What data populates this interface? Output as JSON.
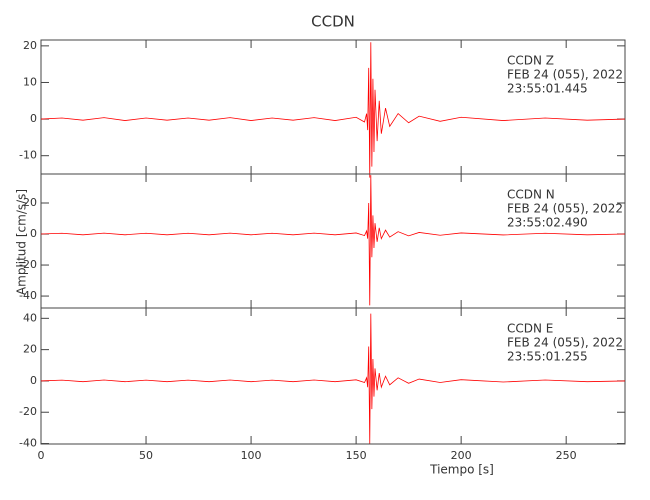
{
  "chart_data": {
    "type": "line",
    "title": "CCDN",
    "xlabel": "Tiempo [s]",
    "ylabel": "Amplitud [cm/s/s]",
    "xlim": [
      0,
      278
    ],
    "xticks": [
      0,
      50,
      100,
      150,
      200,
      250
    ],
    "panels": [
      {
        "annotation": [
          "CCDN   Z",
          "FEB 24 (055), 2022",
          "23:55:01.445"
        ],
        "color": "#ff0000",
        "ylim": [
          -15,
          21.6
        ],
        "yticks": [
          -10,
          0,
          10,
          20
        ],
        "x": [
          0,
          10,
          20,
          30,
          40,
          50,
          60,
          70,
          80,
          90,
          100,
          110,
          120,
          130,
          140,
          150,
          154,
          155,
          155.5,
          156,
          156.5,
          157,
          157.5,
          158,
          158.5,
          159,
          160,
          161,
          162,
          164,
          166,
          170,
          175,
          180,
          190,
          200,
          220,
          240,
          260,
          278
        ],
        "values": [
          0,
          0.3,
          -0.3,
          0.4,
          -0.4,
          0.3,
          -0.3,
          0.3,
          -0.3,
          0.4,
          -0.4,
          0.3,
          -0.3,
          0.4,
          -0.4,
          0.5,
          -0.8,
          1.5,
          -3,
          14,
          -16,
          21,
          -13,
          11,
          -9,
          8,
          -6,
          5,
          -4,
          3,
          -2,
          1.5,
          -1,
          0.8,
          -0.6,
          0.5,
          -0.4,
          0.3,
          -0.3,
          0
        ]
      },
      {
        "annotation": [
          "CCDN   N",
          "FEB 24 (055), 2022",
          "23:55:02.490"
        ],
        "color": "#ff0000",
        "ylim": [
          -47.7,
          38.7
        ],
        "yticks": [
          -40,
          -20,
          0,
          20
        ],
        "x": [
          0,
          10,
          20,
          30,
          40,
          50,
          60,
          70,
          80,
          90,
          100,
          110,
          120,
          130,
          140,
          150,
          154,
          155,
          155.5,
          156,
          156.5,
          157,
          157.5,
          158,
          158.5,
          159,
          160,
          161,
          162,
          164,
          166,
          170,
          175,
          180,
          190,
          200,
          220,
          240,
          260,
          278
        ],
        "values": [
          0,
          0.5,
          -0.5,
          0.6,
          -0.5,
          0.5,
          -0.5,
          0.5,
          -0.5,
          0.6,
          -0.5,
          0.5,
          -0.5,
          0.6,
          -0.5,
          0.7,
          -1,
          2,
          -3,
          20,
          -46,
          38,
          -15,
          12,
          -9,
          7,
          -5,
          4,
          -3,
          2.5,
          -2,
          1.5,
          -1.2,
          1,
          -0.8,
          0.7,
          -0.6,
          0.5,
          -0.5,
          0
        ]
      },
      {
        "annotation": [
          "CCDN   E",
          "FEB 24 (055), 2022",
          "23:55:01.255"
        ],
        "color": "#ff0000",
        "ylim": [
          -40.3,
          46.6
        ],
        "yticks": [
          -40,
          -20,
          0,
          20,
          40
        ],
        "x": [
          0,
          10,
          20,
          30,
          40,
          50,
          60,
          70,
          80,
          90,
          100,
          110,
          120,
          130,
          140,
          150,
          154,
          155,
          155.5,
          156,
          156.5,
          157,
          157.5,
          158,
          158.5,
          159,
          160,
          161,
          162,
          164,
          166,
          170,
          175,
          180,
          190,
          200,
          220,
          240,
          260,
          278
        ],
        "values": [
          0,
          0.5,
          -0.5,
          0.6,
          -0.5,
          0.5,
          -0.5,
          0.5,
          -0.5,
          0.6,
          -0.5,
          0.5,
          -0.5,
          0.6,
          -0.5,
          0.7,
          -1,
          2,
          -4,
          22,
          -40,
          43,
          -18,
          14,
          -10,
          8,
          -6,
          5,
          -4,
          3,
          -2.5,
          2,
          -1.5,
          1.2,
          -1,
          0.8,
          -0.7,
          0.6,
          -0.5,
          0
        ]
      }
    ]
  }
}
